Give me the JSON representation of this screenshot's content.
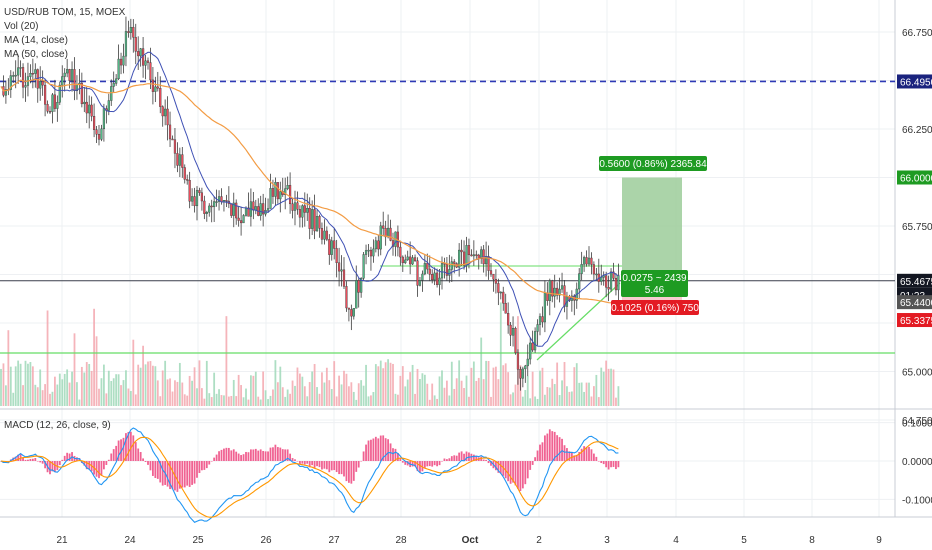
{
  "legend": {
    "title": "USD/RUB TOM, 15, MOEX",
    "vol": "Vol (20)",
    "ma14": "MA (14, close)",
    "ma50": "MA (50, close)",
    "macd": "MACD (12, 26, close, 9)"
  },
  "colors": {
    "up": "#53b987",
    "down": "#eb4d5c",
    "ma14": "#3f51b5",
    "ma50": "#f39c44",
    "macd_line": "#2196f3",
    "signal_line": "#ff9800",
    "hist": "#f06292",
    "target_zone": "#9ccc9a",
    "dashed_level": "#2e3ab5",
    "support_line": "#66dd66",
    "last_price_badge": "#131722",
    "profit_badge": "#1e9b22",
    "loss_badge": "#e31b23"
  },
  "labels": {
    "target": "0.5600 (0.86%) 2365.84",
    "entry_line1": "0.0275 ~ 2439",
    "entry_line2": "5.46",
    "stop": "0.1025 (0.16%) 750"
  },
  "chart_data": [
    {
      "type": "candlestick",
      "title": "USD/RUB TOM, 15, MOEX",
      "x_tick_labels": [
        "21",
        "24",
        "25",
        "26",
        "27",
        "28",
        "Oct",
        "2",
        "3",
        "4",
        "5",
        "8",
        "9"
      ],
      "y_tick_labels": [
        "66.7500",
        "66.2500",
        "65.7500",
        "65.0000",
        "64.7500"
      ],
      "ylim": [
        64.75,
        66.8
      ],
      "price_badges": [
        {
          "value": "66.4950",
          "color": "#1a237e"
        },
        {
          "value": "66.0000",
          "color": "#1e9b22"
        },
        {
          "value": "65.4675",
          "color": "#131722"
        },
        {
          "value": "01:23",
          "color": "#131722"
        },
        {
          "value": "65.4400",
          "color": "#555555"
        },
        {
          "value": "65.3375",
          "color": "#e31b23"
        }
      ],
      "levels": {
        "dashed": 66.495,
        "last": 65.4675,
        "support": 65.05
      },
      "position": {
        "entry": 65.44,
        "target": 66.0,
        "stop": 65.3375
      },
      "ohlc_path_keypoints": [
        [
          0,
          66.45
        ],
        [
          12,
          66.55
        ],
        [
          20,
          66.35
        ],
        [
          28,
          66.55
        ],
        [
          34,
          66.4
        ],
        [
          40,
          66.25
        ],
        [
          46,
          66.5
        ],
        [
          52,
          66.75
        ],
        [
          58,
          66.6
        ],
        [
          62,
          66.5
        ],
        [
          70,
          66.2
        ],
        [
          76,
          65.95
        ],
        [
          82,
          65.85
        ],
        [
          90,
          65.85
        ],
        [
          98,
          65.8
        ],
        [
          106,
          65.85
        ],
        [
          114,
          65.95
        ],
        [
          120,
          65.85
        ],
        [
          130,
          65.75
        ],
        [
          138,
          65.55
        ],
        [
          142,
          65.3
        ],
        [
          148,
          65.55
        ],
        [
          156,
          65.72
        ],
        [
          162,
          65.65
        ],
        [
          170,
          65.5
        ],
        [
          180,
          65.5
        ],
        [
          192,
          65.62
        ],
        [
          200,
          65.55
        ],
        [
          206,
          65.35
        ],
        [
          212,
          65.0
        ],
        [
          218,
          65.15
        ],
        [
          224,
          65.45
        ],
        [
          232,
          65.35
        ],
        [
          238,
          65.55
        ],
        [
          246,
          65.5
        ],
        [
          252,
          65.45
        ]
      ],
      "macd": {
        "ylim": [
          -0.13,
          0.13
        ],
        "y_tick_labels": [
          "0.1000",
          "0.0000",
          "-0.1000"
        ]
      }
    }
  ]
}
